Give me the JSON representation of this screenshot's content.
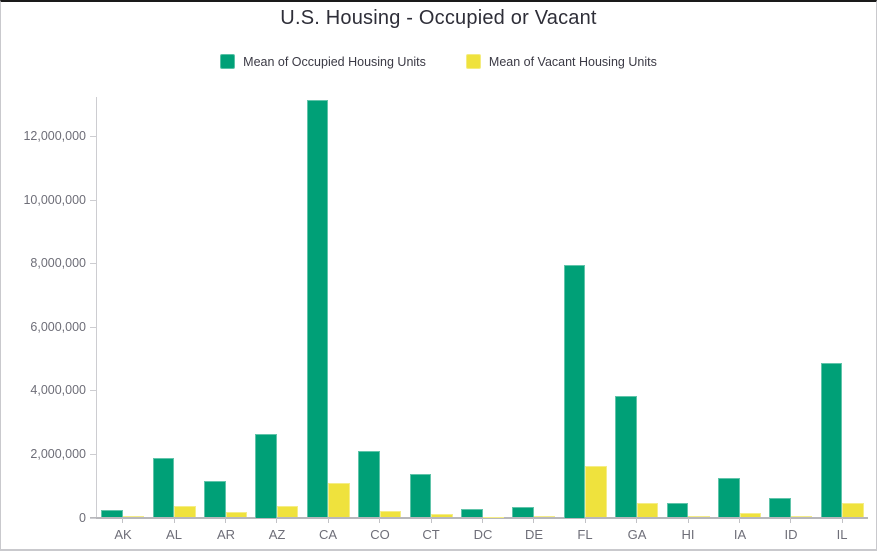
{
  "chart_data": {
    "type": "bar",
    "title": "U.S. Housing - Occupied or Vacant",
    "xlabel": "",
    "ylabel": "",
    "grid": false,
    "legend_position": "top",
    "categories": [
      "AK",
      "AL",
      "AR",
      "AZ",
      "CA",
      "CO",
      "CT",
      "DC",
      "DE",
      "FL",
      "GA",
      "HI",
      "IA",
      "ID",
      "IL"
    ],
    "series": [
      {
        "name": "Mean of Occupied Housing Units",
        "color": "#00A077",
        "values": [
          230000,
          1870000,
          1140000,
          2630000,
          13150000,
          2100000,
          1360000,
          260000,
          340000,
          7950000,
          3820000,
          450000,
          1240000,
          620000,
          4870000
        ]
      },
      {
        "name": "Mean of Vacant Housing Units",
        "color": "#EFE23D",
        "values": [
          40000,
          350000,
          170000,
          370000,
          1090000,
          200000,
          120000,
          25000,
          60000,
          1610000,
          470000,
          50000,
          130000,
          60000,
          470000
        ]
      }
    ],
    "ylim": [
      0,
      13240000
    ],
    "yticks": [
      0,
      2000000,
      4000000,
      6000000,
      8000000,
      10000000,
      12000000
    ],
    "ytick_labels": [
      "0",
      "2,000,000",
      "4,000,000",
      "6,000,000",
      "8,000,000",
      "10,000,000",
      "12,000,000"
    ]
  },
  "colors": {
    "title_text": "#2e2e38",
    "legend_text": "#3b3a45",
    "axis_text": "#6e6e78",
    "axis_line": "#cdcdd1",
    "baseline": "#b7b7bb",
    "occupied_green": "#00A077",
    "vacant_yellow": "#EFE23D"
  }
}
